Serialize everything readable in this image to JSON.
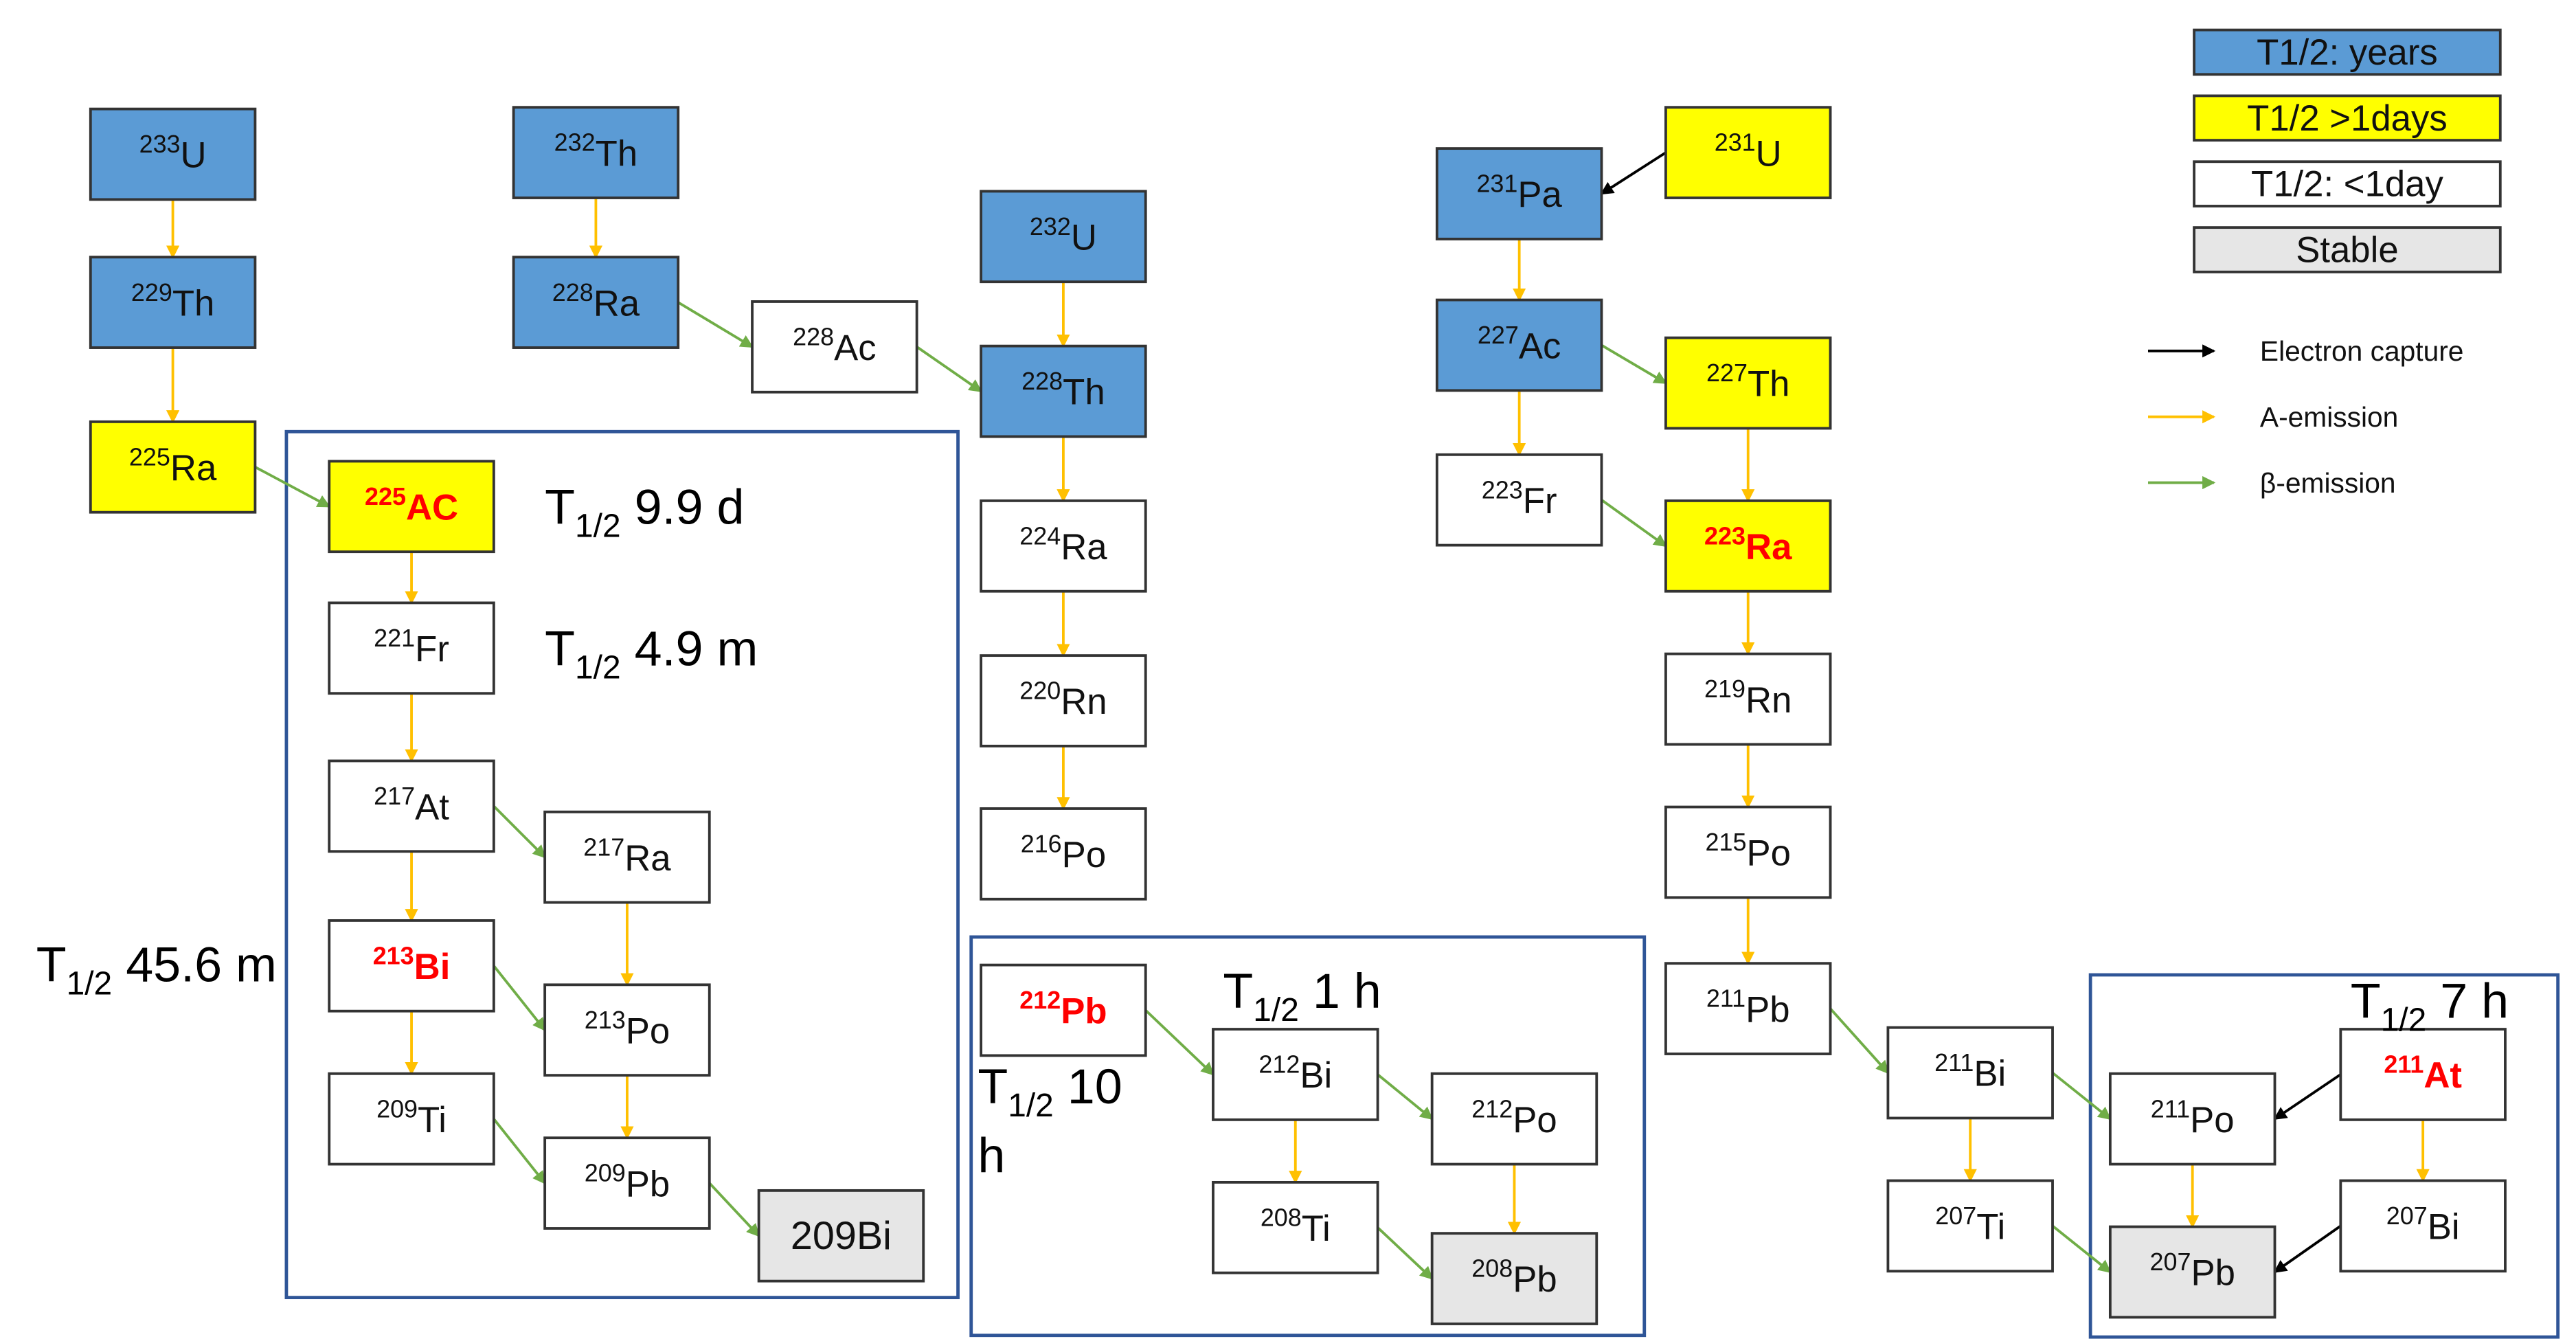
{
  "colors": {
    "years": "#5b9bd5",
    "days": "#ffff00",
    "short": "#ffffff",
    "stable": "#e6e6e6",
    "alpha": "#ffc000",
    "beta": "#70ad47",
    "ec": "#000000",
    "highlight": "#ff0000",
    "frame": "#2f5597"
  },
  "legend": {
    "categories": [
      {
        "key": "years",
        "label": "T1/2: years"
      },
      {
        "key": "days",
        "label": "T1/2 >1days"
      },
      {
        "key": "short",
        "label": "T1/2: <1day"
      },
      {
        "key": "stable",
        "label": "Stable"
      }
    ],
    "arrows": [
      {
        "key": "ec",
        "label": "Electron capture"
      },
      {
        "key": "alpha",
        "label": "A-emission"
      },
      {
        "key": "beta",
        "label": "β-emission"
      }
    ]
  },
  "nuclides": [
    {
      "id": "U233",
      "mass": "233",
      "el": "U",
      "cat": "years"
    },
    {
      "id": "Th229",
      "mass": "229",
      "el": "Th",
      "cat": "years"
    },
    {
      "id": "Ra225",
      "mass": "225",
      "el": "Ra",
      "cat": "days"
    },
    {
      "id": "Th232",
      "mass": "232",
      "el": "Th",
      "cat": "years"
    },
    {
      "id": "Ra228",
      "mass": "228",
      "el": "Ra",
      "cat": "years"
    },
    {
      "id": "Ac228",
      "mass": "228",
      "el": "Ac",
      "cat": "short"
    },
    {
      "id": "U232",
      "mass": "232",
      "el": "U",
      "cat": "years"
    },
    {
      "id": "Th228",
      "mass": "228",
      "el": "Th",
      "cat": "years"
    },
    {
      "id": "Ra224",
      "mass": "224",
      "el": "Ra",
      "cat": "short"
    },
    {
      "id": "Rn220",
      "mass": "220",
      "el": "Rn",
      "cat": "short"
    },
    {
      "id": "Po216",
      "mass": "216",
      "el": "Po",
      "cat": "short"
    },
    {
      "id": "Ac225",
      "mass": "225",
      "el": "AC",
      "cat": "days",
      "red": true
    },
    {
      "id": "Fr221",
      "mass": "221",
      "el": "Fr",
      "cat": "short"
    },
    {
      "id": "At217",
      "mass": "217",
      "el": "At",
      "cat": "short"
    },
    {
      "id": "Ra217",
      "mass": "217",
      "el": "Ra",
      "cat": "short"
    },
    {
      "id": "Bi213",
      "mass": "213",
      "el": "Bi",
      "cat": "short",
      "red": true
    },
    {
      "id": "Po213",
      "mass": "213",
      "el": "Po",
      "cat": "short"
    },
    {
      "id": "Ti209",
      "mass": "209",
      "el": "Ti",
      "cat": "short"
    },
    {
      "id": "Pb209",
      "mass": "209",
      "el": "Pb",
      "cat": "short"
    },
    {
      "id": "Bi209",
      "mass": "209",
      "el": "Bi",
      "cat": "stable",
      "plain": true
    },
    {
      "id": "Pb212",
      "mass": "212",
      "el": "Pb",
      "cat": "short",
      "red": true
    },
    {
      "id": "Bi212",
      "mass": "212",
      "el": "Bi",
      "cat": "short"
    },
    {
      "id": "Po212",
      "mass": "212",
      "el": "Po",
      "cat": "short"
    },
    {
      "id": "Ti208",
      "mass": "208",
      "el": "Ti",
      "cat": "short"
    },
    {
      "id": "Pb208",
      "mass": "208",
      "el": "Pb",
      "cat": "stable"
    },
    {
      "id": "Pa231",
      "mass": "231",
      "el": "Pa",
      "cat": "years"
    },
    {
      "id": "U231",
      "mass": "231",
      "el": "U",
      "cat": "days"
    },
    {
      "id": "Ac227",
      "mass": "227",
      "el": "Ac",
      "cat": "years"
    },
    {
      "id": "Th227",
      "mass": "227",
      "el": "Th",
      "cat": "days"
    },
    {
      "id": "Fr223",
      "mass": "223",
      "el": "Fr",
      "cat": "short"
    },
    {
      "id": "Ra223",
      "mass": "223",
      "el": "Ra",
      "cat": "days",
      "red": true
    },
    {
      "id": "Rn219",
      "mass": "219",
      "el": "Rn",
      "cat": "short"
    },
    {
      "id": "Po215",
      "mass": "215",
      "el": "Po",
      "cat": "short"
    },
    {
      "id": "Pb211",
      "mass": "211",
      "el": "Pb",
      "cat": "short"
    },
    {
      "id": "Bi211",
      "mass": "211",
      "el": "Bi",
      "cat": "short"
    },
    {
      "id": "Ti207",
      "mass": "207",
      "el": "Ti",
      "cat": "short"
    },
    {
      "id": "Po211",
      "mass": "211",
      "el": "Po",
      "cat": "short"
    },
    {
      "id": "At211",
      "mass": "211",
      "el": "At",
      "cat": "short",
      "red": true
    },
    {
      "id": "Pb207",
      "mass": "207",
      "el": "Pb",
      "cat": "stable"
    },
    {
      "id": "Bi207",
      "mass": "207",
      "el": "Bi",
      "cat": "short"
    }
  ],
  "decays": [
    [
      "U233",
      "Th229",
      "alpha"
    ],
    [
      "Th229",
      "Ra225",
      "alpha"
    ],
    [
      "Th232",
      "Ra228",
      "alpha"
    ],
    [
      "U232",
      "Th228",
      "alpha"
    ],
    [
      "Th228",
      "Ra224",
      "alpha"
    ],
    [
      "Ra224",
      "Rn220",
      "alpha"
    ],
    [
      "Rn220",
      "Po216",
      "alpha"
    ],
    [
      "Ac225",
      "Fr221",
      "alpha"
    ],
    [
      "Fr221",
      "At217",
      "alpha"
    ],
    [
      "At217",
      "Bi213",
      "alpha"
    ],
    [
      "Ra217",
      "Po213",
      "alpha"
    ],
    [
      "Bi213",
      "Ti209",
      "alpha"
    ],
    [
      "Po213",
      "Pb209",
      "alpha"
    ],
    [
      "Bi212",
      "Ti208",
      "alpha"
    ],
    [
      "Po212",
      "Pb208",
      "alpha"
    ],
    [
      "Pa231",
      "Ac227",
      "alpha"
    ],
    [
      "Ac227",
      "Fr223",
      "alpha"
    ],
    [
      "Th227",
      "Ra223",
      "alpha"
    ],
    [
      "Ra223",
      "Rn219",
      "alpha"
    ],
    [
      "Rn219",
      "Po215",
      "alpha"
    ],
    [
      "Po215",
      "Pb211",
      "alpha"
    ],
    [
      "Bi211",
      "Ti207",
      "alpha"
    ],
    [
      "At211",
      "Bi207",
      "alpha"
    ],
    [
      "Po211",
      "Pb207",
      "alpha"
    ],
    [
      "Ra225",
      "Ac225",
      "beta"
    ],
    [
      "Ra228",
      "Ac228",
      "beta"
    ],
    [
      "Ac228",
      "Th228",
      "beta"
    ],
    [
      "At217",
      "Ra217",
      "beta"
    ],
    [
      "Bi213",
      "Po213",
      "beta"
    ],
    [
      "Ti209",
      "Pb209",
      "beta"
    ],
    [
      "Pb209",
      "Bi209",
      "beta"
    ],
    [
      "Pb212",
      "Bi212",
      "beta"
    ],
    [
      "Bi212",
      "Po212",
      "beta"
    ],
    [
      "Ti208",
      "Pb208",
      "beta"
    ],
    [
      "Ac227",
      "Th227",
      "beta"
    ],
    [
      "Fr223",
      "Ra223",
      "beta"
    ],
    [
      "Pb211",
      "Bi211",
      "beta"
    ],
    [
      "Bi211",
      "Po211",
      "beta"
    ],
    [
      "Ti207",
      "Pb207",
      "beta"
    ],
    [
      "U231",
      "Pa231",
      "ec"
    ],
    [
      "At211",
      "Po211",
      "ec"
    ],
    [
      "Bi207",
      "Pb207",
      "ec"
    ]
  ],
  "half_lives": [
    {
      "id": "ac225",
      "symbol": "T",
      "sub": "1/2",
      "value": "9.9 d"
    },
    {
      "id": "fr221",
      "symbol": "T",
      "sub": "1/2",
      "value": "4.9 m"
    },
    {
      "id": "bi213",
      "symbol": "T",
      "sub": "1/2",
      "value": "45.6 m"
    },
    {
      "id": "bi212",
      "symbol": "T",
      "sub": "1/2",
      "value": "1 h"
    },
    {
      "id": "pb212",
      "symbol": "T",
      "sub": "1/2",
      "value": "10",
      "wrap": "h"
    },
    {
      "id": "at211",
      "symbol": "T",
      "sub": "1/2",
      "value": "7 h"
    }
  ]
}
